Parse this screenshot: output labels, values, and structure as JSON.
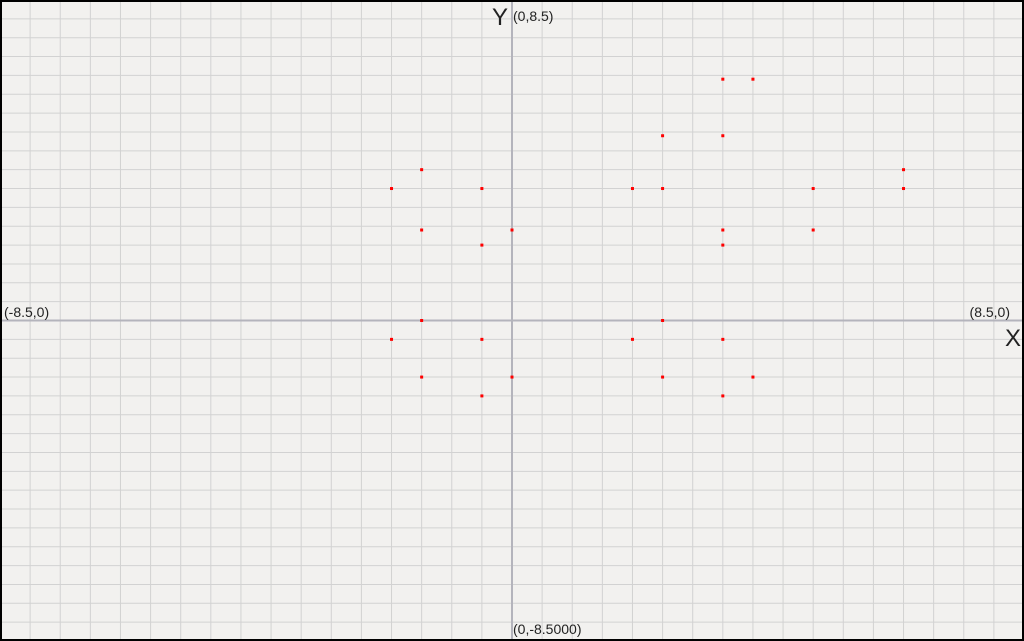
{
  "chart_data": {
    "type": "scatter",
    "x_label": "X",
    "y_label": "Y",
    "annotations": [
      "(0,8.5)",
      "(-8.5,0)",
      "(8.5,0)",
      "(0,-8.5000)"
    ],
    "x": [
      3.5,
      4.0,
      2.5,
      3.5,
      -1.5,
      -2.0,
      -0.5,
      2.0,
      2.5,
      5.0,
      6.5,
      6.5,
      -1.5,
      0,
      3.5,
      5.0,
      -0.5,
      3.5,
      -1.5,
      2.5,
      -2.0,
      -0.5,
      2.0,
      3.5,
      -1.5,
      0,
      2.5,
      4.0,
      -0.5,
      3.5
    ],
    "values": [
      6.4,
      6.4,
      4.9,
      4.9,
      4.0,
      3.5,
      3.5,
      3.5,
      3.5,
      3.5,
      4.0,
      3.5,
      2.4,
      2.4,
      2.4,
      2.4,
      2.0,
      2.0,
      0,
      0,
      -0.5,
      -0.5,
      -0.5,
      -0.5,
      -1.5,
      -1.5,
      -1.5,
      -1.5,
      -2.0,
      -2.0
    ],
    "color": "#ff0000",
    "xlim": [
      -8.5,
      8.5
    ],
    "ylim": [
      -8.5,
      8.5
    ],
    "xticks": [
      -8.5,
      -8,
      -7.5,
      -7,
      -6.5,
      -6,
      -5.5,
      -5,
      -4.5,
      -4,
      -3.5,
      -3,
      -2.5,
      -2,
      -1.5,
      -1,
      -0.5,
      0,
      0.5,
      1,
      1.5,
      2,
      2.5,
      3,
      3.5,
      4,
      4.5,
      5,
      5.5,
      6,
      6.5,
      7,
      7.5,
      8,
      8.5
    ],
    "yticks": [
      -8.5,
      -8,
      -7.5,
      -7,
      -6.5,
      -6,
      -5.5,
      -5,
      -4.5,
      -4,
      -3.5,
      -3,
      -2.5,
      -2,
      -1.5,
      -1,
      -0.5,
      0,
      0.5,
      1,
      1.5,
      2,
      2.5,
      3,
      3.5,
      4,
      4.5,
      5,
      5.5,
      6,
      6.5,
      7,
      7.5,
      8,
      8.5
    ],
    "grid": true
  }
}
